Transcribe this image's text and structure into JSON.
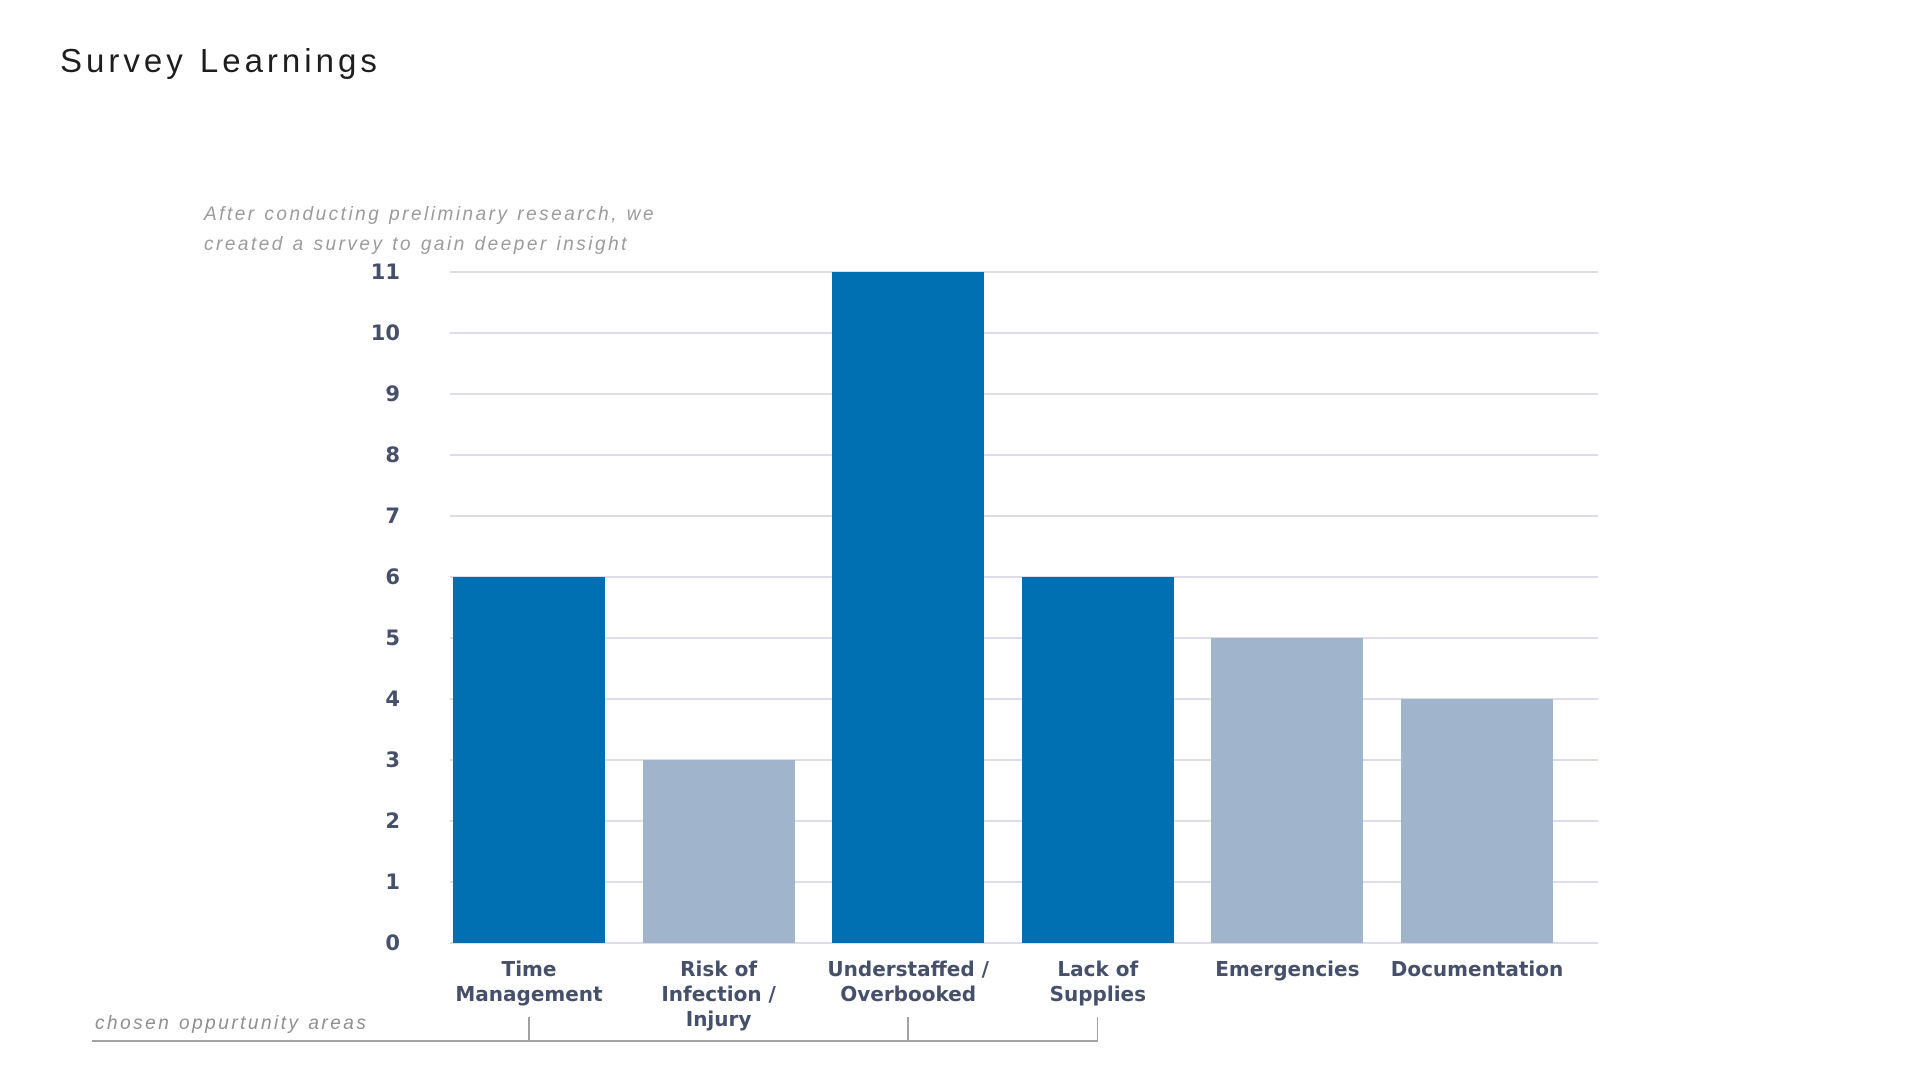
{
  "slide": {
    "title": "Survey Learnings",
    "subtitle": {
      "line1": "After conducting preliminary research, we",
      "line2": "created a survey to gain deeper insight"
    },
    "annotation_label": "chosen oppurtunity areas"
  },
  "colors": {
    "bar_highlight": "#0070b2",
    "bar_default": "#a0b4cc",
    "axis_text": "#47506b",
    "gridline": "#dedcea",
    "title_text": "#1e1e1e",
    "muted_text": "#9b9b9d",
    "bracket": "#a2a2a2",
    "background": "#ffffff"
  },
  "chart_data": {
    "type": "bar",
    "title": "Survey Learnings",
    "subtitle": "After conducting preliminary research, we created a survey to gain deeper insight",
    "categories": [
      "Time Management",
      "Risk of Infection / Injury",
      "Understaffed / Overbooked",
      "Lack of Supplies",
      "Emergencies",
      "Documentation"
    ],
    "category_label_lines": [
      [
        "Time",
        "Management"
      ],
      [
        "Risk of",
        "Infection /",
        "Injury"
      ],
      [
        "Understaffed /",
        "Overbooked"
      ],
      [
        "Lack of",
        "Supplies"
      ],
      [
        "Emergencies"
      ],
      [
        "Documentation"
      ]
    ],
    "values": [
      6,
      3,
      11,
      6,
      5,
      4
    ],
    "highlighted": [
      true,
      false,
      true,
      true,
      false,
      false
    ],
    "highlight_meaning": "chosen oppurtunity areas",
    "bar_color_highlighted": "#0070b2",
    "bar_color_default": "#a0b4cc",
    "xlabel": "",
    "ylabel": "",
    "ylim": [
      0,
      11
    ],
    "yticks": [
      0,
      1,
      2,
      3,
      4,
      5,
      6,
      7,
      8,
      9,
      10,
      11
    ],
    "grid": true,
    "legend": false
  }
}
